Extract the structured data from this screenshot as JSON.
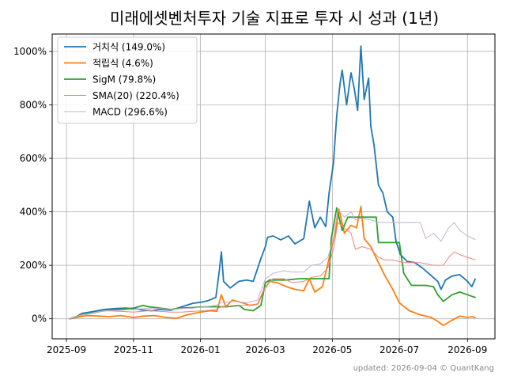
{
  "chart_data": {
    "type": "line",
    "title": "미래에셋벤처투자 기술 지표로 투자 시 성과 (1년)",
    "xlabel": "",
    "ylabel": "",
    "x_ticks": [
      "2025-09",
      "2025-11",
      "2026-01",
      "2026-03",
      "2026-05",
      "2026-07",
      "2026-09"
    ],
    "y_ticks": [
      "0%",
      "200%",
      "400%",
      "600%",
      "800%",
      "1000%"
    ],
    "xlim": [
      "2025-08-19",
      "2026-09-26"
    ],
    "ylim": [
      -75,
      1065
    ],
    "grid": true,
    "legend_position": "top-left",
    "series": [
      {
        "name": "거치식 (149.0%)",
        "color": "#1f77b4",
        "width": 1.8,
        "points": [
          [
            "2025-09-04",
            0
          ],
          [
            "2025-09-10",
            8
          ],
          [
            "2025-09-15",
            20
          ],
          [
            "2025-09-25",
            27
          ],
          [
            "2025-10-05",
            35
          ],
          [
            "2025-10-15",
            38
          ],
          [
            "2025-10-25",
            40
          ],
          [
            "2025-11-05",
            36
          ],
          [
            "2025-11-10",
            32
          ],
          [
            "2025-11-18",
            30
          ],
          [
            "2025-11-25",
            35
          ],
          [
            "2025-12-05",
            32
          ],
          [
            "2025-12-15",
            45
          ],
          [
            "2025-12-25",
            58
          ],
          [
            "2026-01-02",
            62
          ],
          [
            "2026-01-08",
            68
          ],
          [
            "2026-01-15",
            80
          ],
          [
            "2026-01-18",
            175
          ],
          [
            "2026-01-20",
            250
          ],
          [
            "2026-01-22",
            140
          ],
          [
            "2026-01-28",
            115
          ],
          [
            "2026-02-05",
            140
          ],
          [
            "2026-02-12",
            145
          ],
          [
            "2026-02-18",
            140
          ],
          [
            "2026-02-25",
            225
          ],
          [
            "2026-03-01",
            270
          ],
          [
            "2026-03-03",
            305
          ],
          [
            "2026-03-08",
            310
          ],
          [
            "2026-03-15",
            295
          ],
          [
            "2026-03-22",
            310
          ],
          [
            "2026-03-28",
            280
          ],
          [
            "2026-04-05",
            300
          ],
          [
            "2026-04-10",
            440
          ],
          [
            "2026-04-15",
            340
          ],
          [
            "2026-04-20",
            380
          ],
          [
            "2026-04-25",
            345
          ],
          [
            "2026-04-28",
            470
          ],
          [
            "2026-05-02",
            580
          ],
          [
            "2026-05-05",
            760
          ],
          [
            "2026-05-08",
            880
          ],
          [
            "2026-05-10",
            930
          ],
          [
            "2026-05-14",
            800
          ],
          [
            "2026-05-18",
            920
          ],
          [
            "2026-05-21",
            860
          ],
          [
            "2026-05-24",
            780
          ],
          [
            "2026-05-27",
            1020
          ],
          [
            "2026-05-30",
            820
          ],
          [
            "2026-06-03",
            900
          ],
          [
            "2026-06-05",
            720
          ],
          [
            "2026-06-08",
            650
          ],
          [
            "2026-06-12",
            500
          ],
          [
            "2026-06-16",
            470
          ],
          [
            "2026-06-20",
            400
          ],
          [
            "2026-06-25",
            380
          ],
          [
            "2026-06-28",
            290
          ],
          [
            "2026-07-02",
            240
          ],
          [
            "2026-07-08",
            215
          ],
          [
            "2026-07-15",
            210
          ],
          [
            "2026-07-22",
            190
          ],
          [
            "2026-07-29",
            165
          ],
          [
            "2026-08-05",
            140
          ],
          [
            "2026-08-08",
            110
          ],
          [
            "2026-08-12",
            145
          ],
          [
            "2026-08-18",
            160
          ],
          [
            "2026-08-25",
            165
          ],
          [
            "2026-09-01",
            140
          ],
          [
            "2026-09-05",
            120
          ],
          [
            "2026-09-08",
            149
          ]
        ]
      },
      {
        "name": "적립식 (4.6%)",
        "color": "#ff7f0e",
        "width": 1.8,
        "points": [
          [
            "2025-09-04",
            0
          ],
          [
            "2025-09-10",
            5
          ],
          [
            "2025-09-20",
            12
          ],
          [
            "2025-10-01",
            10
          ],
          [
            "2025-10-10",
            8
          ],
          [
            "2025-10-20",
            12
          ],
          [
            "2025-11-01",
            5
          ],
          [
            "2025-11-10",
            10
          ],
          [
            "2025-11-20",
            12
          ],
          [
            "2025-12-01",
            5
          ],
          [
            "2025-12-10",
            2
          ],
          [
            "2025-12-20",
            15
          ],
          [
            "2026-01-01",
            25
          ],
          [
            "2026-01-10",
            30
          ],
          [
            "2026-01-16",
            28
          ],
          [
            "2026-01-20",
            90
          ],
          [
            "2026-01-24",
            45
          ],
          [
            "2026-01-30",
            70
          ],
          [
            "2026-02-08",
            60
          ],
          [
            "2026-02-15",
            50
          ],
          [
            "2026-02-22",
            55
          ],
          [
            "2026-02-28",
            110
          ],
          [
            "2026-03-05",
            140
          ],
          [
            "2026-03-12",
            135
          ],
          [
            "2026-03-20",
            120
          ],
          [
            "2026-03-28",
            110
          ],
          [
            "2026-04-05",
            105
          ],
          [
            "2026-04-10",
            150
          ],
          [
            "2026-04-15",
            100
          ],
          [
            "2026-04-22",
            120
          ],
          [
            "2026-04-26",
            190
          ],
          [
            "2026-04-30",
            260
          ],
          [
            "2026-05-04",
            330
          ],
          [
            "2026-05-07",
            410
          ],
          [
            "2026-05-12",
            320
          ],
          [
            "2026-05-18",
            350
          ],
          [
            "2026-05-23",
            340
          ],
          [
            "2026-05-27",
            420
          ],
          [
            "2026-05-30",
            300
          ],
          [
            "2026-06-05",
            270
          ],
          [
            "2026-06-12",
            210
          ],
          [
            "2026-06-18",
            160
          ],
          [
            "2026-06-25",
            110
          ],
          [
            "2026-07-01",
            60
          ],
          [
            "2026-07-10",
            30
          ],
          [
            "2026-07-20",
            15
          ],
          [
            "2026-07-30",
            5
          ],
          [
            "2026-08-05",
            -10
          ],
          [
            "2026-08-10",
            -25
          ],
          [
            "2026-08-18",
            -5
          ],
          [
            "2026-08-25",
            10
          ],
          [
            "2026-09-01",
            5
          ],
          [
            "2026-09-05",
            8
          ],
          [
            "2026-09-08",
            4.6
          ]
        ]
      },
      {
        "name": "SigM (79.8%)",
        "color": "#2ca02c",
        "width": 1.8,
        "points": [
          [
            "2025-09-04",
            0
          ],
          [
            "2025-09-15",
            15
          ],
          [
            "2025-09-25",
            22
          ],
          [
            "2025-10-05",
            30
          ],
          [
            "2025-10-20",
            35
          ],
          [
            "2025-11-01",
            40
          ],
          [
            "2025-11-10",
            50
          ],
          [
            "2025-11-15",
            45
          ],
          [
            "2025-11-25",
            40
          ],
          [
            "2025-12-05",
            35
          ],
          [
            "2025-12-15",
            40
          ],
          [
            "2025-12-25",
            42
          ],
          [
            "2026-01-05",
            45
          ],
          [
            "2026-01-15",
            45
          ],
          [
            "2026-01-25",
            45
          ],
          [
            "2026-02-05",
            50
          ],
          [
            "2026-02-10",
            35
          ],
          [
            "2026-02-18",
            30
          ],
          [
            "2026-02-25",
            50
          ],
          [
            "2026-03-01",
            135
          ],
          [
            "2026-03-05",
            145
          ],
          [
            "2026-03-20",
            145
          ],
          [
            "2026-04-01",
            150
          ],
          [
            "2026-04-20",
            150
          ],
          [
            "2026-04-28",
            150
          ],
          [
            "2026-04-30",
            300
          ],
          [
            "2026-05-05",
            415
          ],
          [
            "2026-05-10",
            330
          ],
          [
            "2026-05-15",
            380
          ],
          [
            "2026-05-25",
            380
          ],
          [
            "2026-06-01",
            380
          ],
          [
            "2026-06-10",
            380
          ],
          [
            "2026-06-12",
            285
          ],
          [
            "2026-06-25",
            285
          ],
          [
            "2026-07-01",
            285
          ],
          [
            "2026-07-05",
            170
          ],
          [
            "2026-07-12",
            125
          ],
          [
            "2026-07-25",
            125
          ],
          [
            "2026-08-01",
            120
          ],
          [
            "2026-08-05",
            90
          ],
          [
            "2026-08-10",
            65
          ],
          [
            "2026-08-18",
            90
          ],
          [
            "2026-08-25",
            100
          ],
          [
            "2026-09-01",
            90
          ],
          [
            "2026-09-08",
            79.8
          ]
        ]
      },
      {
        "name": "SMA(20) (220.4%)",
        "color": "#e8877f",
        "width": 1,
        "points": [
          [
            "2025-09-04",
            0
          ],
          [
            "2025-09-15",
            15
          ],
          [
            "2025-09-25",
            22
          ],
          [
            "2025-10-05",
            30
          ],
          [
            "2025-10-20",
            28
          ],
          [
            "2025-11-01",
            25
          ],
          [
            "2025-11-15",
            30
          ],
          [
            "2025-11-25",
            28
          ],
          [
            "2025-12-05",
            25
          ],
          [
            "2025-12-15",
            25
          ],
          [
            "2025-12-25",
            28
          ],
          [
            "2026-01-05",
            30
          ],
          [
            "2026-01-15",
            35
          ],
          [
            "2026-01-20",
            45
          ],
          [
            "2026-02-01",
            50
          ],
          [
            "2026-02-12",
            50
          ],
          [
            "2026-02-22",
            55
          ],
          [
            "2026-03-01",
            120
          ],
          [
            "2026-03-08",
            150
          ],
          [
            "2026-03-18",
            150
          ],
          [
            "2026-03-25",
            135
          ],
          [
            "2026-04-05",
            140
          ],
          [
            "2026-04-12",
            155
          ],
          [
            "2026-04-20",
            160
          ],
          [
            "2026-04-27",
            190
          ],
          [
            "2026-05-02",
            260
          ],
          [
            "2026-05-06",
            360
          ],
          [
            "2026-05-12",
            340
          ],
          [
            "2026-05-18",
            320
          ],
          [
            "2026-05-22",
            260
          ],
          [
            "2026-05-28",
            270
          ],
          [
            "2026-06-05",
            260
          ],
          [
            "2026-06-12",
            230
          ],
          [
            "2026-06-18",
            220
          ],
          [
            "2026-06-25",
            220
          ],
          [
            "2026-07-05",
            210
          ],
          [
            "2026-07-20",
            210
          ],
          [
            "2026-08-01",
            200
          ],
          [
            "2026-08-10",
            200
          ],
          [
            "2026-08-15",
            230
          ],
          [
            "2026-08-20",
            250
          ],
          [
            "2026-08-25",
            240
          ],
          [
            "2026-09-01",
            230
          ],
          [
            "2026-09-08",
            220.4
          ]
        ]
      },
      {
        "name": "MACD (296.6%)",
        "color": "#c5b0d5",
        "width": 1,
        "points": [
          [
            "2025-09-04",
            0
          ],
          [
            "2025-09-15",
            15
          ],
          [
            "2025-09-25",
            22
          ],
          [
            "2025-10-05",
            30
          ],
          [
            "2025-10-20",
            32
          ],
          [
            "2025-11-01",
            35
          ],
          [
            "2025-11-15",
            40
          ],
          [
            "2025-11-25",
            38
          ],
          [
            "2025-12-05",
            35
          ],
          [
            "2025-12-15",
            38
          ],
          [
            "2025-12-25",
            40
          ],
          [
            "2026-01-05",
            45
          ],
          [
            "2026-01-15",
            50
          ],
          [
            "2026-01-20",
            60
          ],
          [
            "2026-02-01",
            65
          ],
          [
            "2026-02-12",
            60
          ],
          [
            "2026-02-22",
            70
          ],
          [
            "2026-03-01",
            150
          ],
          [
            "2026-03-08",
            170
          ],
          [
            "2026-03-18",
            180
          ],
          [
            "2026-03-25",
            175
          ],
          [
            "2026-04-05",
            175
          ],
          [
            "2026-04-12",
            200
          ],
          [
            "2026-04-20",
            205
          ],
          [
            "2026-04-27",
            230
          ],
          [
            "2026-05-02",
            300
          ],
          [
            "2026-05-06",
            410
          ],
          [
            "2026-05-12",
            380
          ],
          [
            "2026-05-18",
            400
          ],
          [
            "2026-05-22",
            370
          ],
          [
            "2026-05-28",
            375
          ],
          [
            "2026-06-05",
            370
          ],
          [
            "2026-06-12",
            360
          ],
          [
            "2026-06-25",
            360
          ],
          [
            "2026-07-05",
            360
          ],
          [
            "2026-07-20",
            360
          ],
          [
            "2026-07-25",
            300
          ],
          [
            "2026-08-01",
            320
          ],
          [
            "2026-08-08",
            290
          ],
          [
            "2026-08-15",
            340
          ],
          [
            "2026-08-20",
            360
          ],
          [
            "2026-08-25",
            330
          ],
          [
            "2026-09-01",
            310
          ],
          [
            "2026-09-08",
            296.6
          ]
        ]
      }
    ]
  },
  "footer": {
    "text": "updated: 2026-09-04 © QuantKang"
  }
}
